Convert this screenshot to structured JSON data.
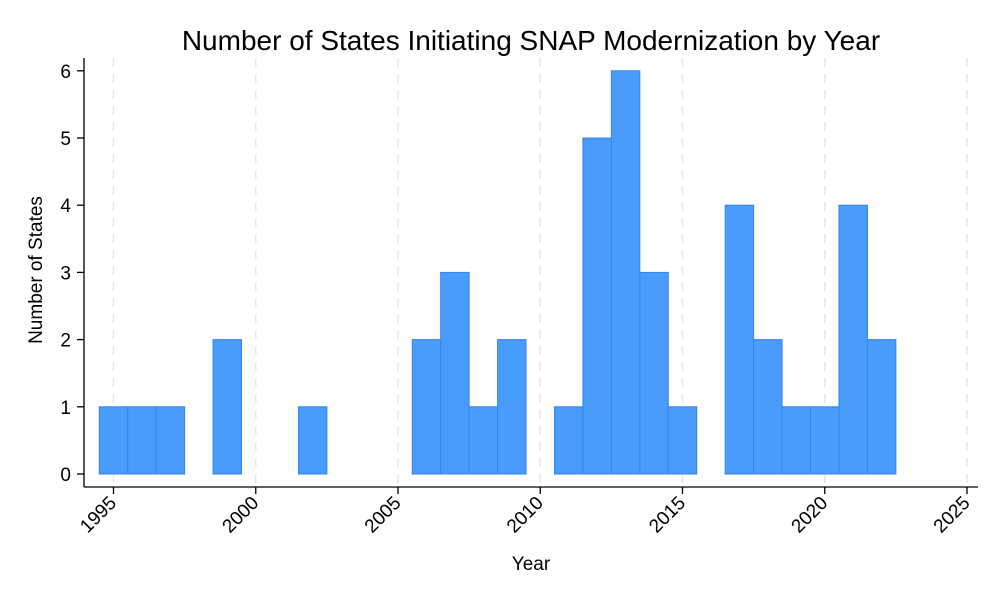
{
  "chart_data": {
    "type": "bar",
    "title": "Number of States Initiating SNAP Modernization by Year",
    "xlabel": "Year",
    "ylabel": "Number of States",
    "x": [
      1995,
      1996,
      1997,
      1999,
      2002,
      2006,
      2007,
      2008,
      2009,
      2011,
      2012,
      2013,
      2014,
      2015,
      2017,
      2018,
      2019,
      2020,
      2021,
      2022
    ],
    "values": [
      1,
      1,
      1,
      2,
      1,
      2,
      3,
      1,
      2,
      1,
      5,
      6,
      3,
      1,
      4,
      2,
      1,
      1,
      4,
      2
    ],
    "xlim": [
      1994.5,
      2025.5
    ],
    "ylim": [
      0,
      6.2
    ],
    "xticks": [
      1995,
      2000,
      2005,
      2010,
      2015,
      2020,
      2025
    ],
    "xtick_labels": [
      "1995",
      "2000",
      "2005",
      "2010",
      "2015",
      "2020",
      "2025"
    ],
    "yticks": [
      0,
      1,
      2,
      3,
      4,
      5,
      6
    ],
    "ytick_labels": [
      "0",
      "1",
      "2",
      "3",
      "4",
      "5",
      "6"
    ],
    "bar_width": 1,
    "grid": "vertical dashed at x ticks",
    "legend": "none",
    "colors": {
      "bar_fill": "#4a9cfc",
      "bar_edge": "#2f86ec",
      "grid": "#e6e6e6",
      "axis": "#000000"
    }
  }
}
